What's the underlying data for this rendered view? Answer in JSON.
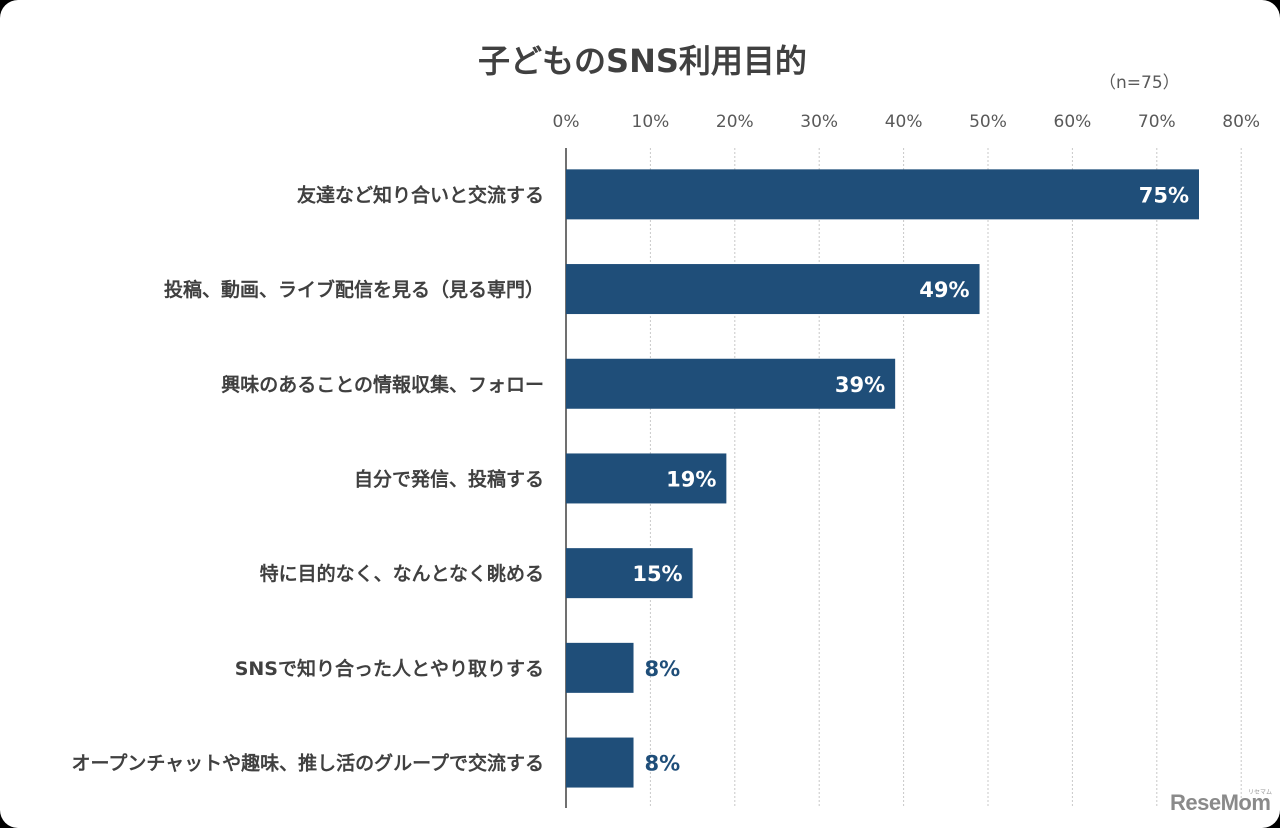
{
  "chart_data": {
    "type": "bar",
    "orientation": "horizontal",
    "title": "子どものSNS利用目的",
    "note": "（n=75）",
    "categories": [
      "友達など知り合いと交流する",
      "投稿、動画、ライブ配信を見る（見る専門）",
      "興味のあることの情報収集、フォロー",
      "自分で発信、投稿する",
      "特に目的なく、なんとなく眺める",
      "SNSで知り合った人とやり取りする",
      "オープンチャットや趣味、推し活のグループで交流する"
    ],
    "values": [
      75,
      49,
      39,
      19,
      15,
      8,
      8
    ],
    "data_labels": [
      "75%",
      "49%",
      "39%",
      "19%",
      "15%",
      "8%",
      "8%"
    ],
    "xlim": [
      0,
      80
    ],
    "xticks": [
      "0%",
      "10%",
      "20%",
      "30%",
      "40%",
      "50%",
      "60%",
      "70%",
      "80%"
    ],
    "grid": true,
    "bar_color": "#1f4e79"
  },
  "watermark": {
    "text": "ReseMom",
    "small_text": "リセマム"
  }
}
